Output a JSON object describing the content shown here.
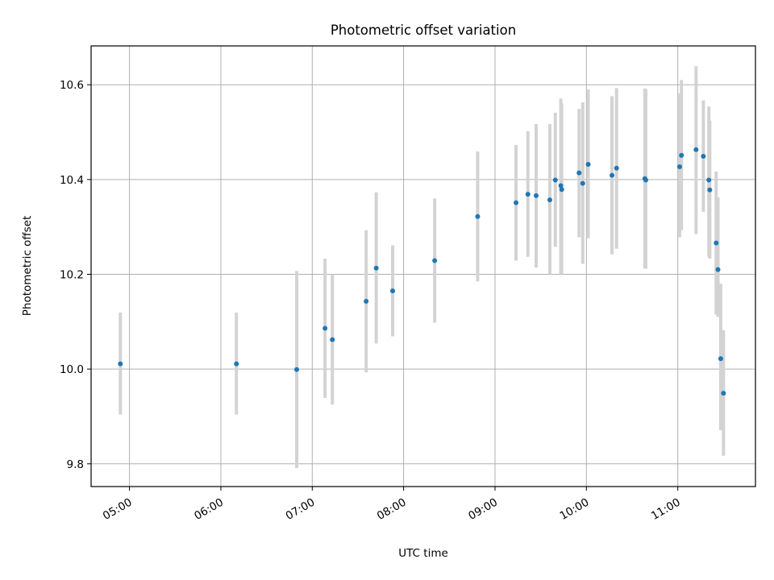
{
  "chart_data": {
    "type": "scatter",
    "title": "Photometric offset variation",
    "xlabel": "UTC time",
    "ylabel": "Photometric offset",
    "x_unit": "hours UTC",
    "xlim": [
      4.58,
      11.85
    ],
    "ylim": [
      9.752,
      10.682
    ],
    "x_ticks": [
      {
        "value": 5,
        "label": "05:00"
      },
      {
        "value": 6,
        "label": "06:00"
      },
      {
        "value": 7,
        "label": "07:00"
      },
      {
        "value": 8,
        "label": "08:00"
      },
      {
        "value": 9,
        "label": "09:00"
      },
      {
        "value": 10,
        "label": "10:00"
      },
      {
        "value": 11,
        "label": "11:00"
      }
    ],
    "y_ticks": [
      {
        "value": 9.8,
        "label": "9.8"
      },
      {
        "value": 10.0,
        "label": "10.0"
      },
      {
        "value": 10.2,
        "label": "10.2"
      },
      {
        "value": 10.4,
        "label": "10.4"
      },
      {
        "value": 10.6,
        "label": "10.6"
      }
    ],
    "grid": true,
    "marker_color": "#1f77b4",
    "errorbar_color": "#d3d3d3",
    "points": [
      {
        "x": 4.9,
        "y": 10.011,
        "lo": 9.904,
        "hi": 10.119
      },
      {
        "x": 6.17,
        "y": 10.011,
        "lo": 9.904,
        "hi": 10.119
      },
      {
        "x": 6.83,
        "y": 9.999,
        "lo": 9.791,
        "hi": 10.207
      },
      {
        "x": 7.14,
        "y": 10.086,
        "lo": 9.939,
        "hi": 10.233
      },
      {
        "x": 7.22,
        "y": 10.062,
        "lo": 9.925,
        "hi": 10.2
      },
      {
        "x": 7.59,
        "y": 10.143,
        "lo": 9.993,
        "hi": 10.293
      },
      {
        "x": 7.7,
        "y": 10.213,
        "lo": 10.054,
        "hi": 10.373
      },
      {
        "x": 7.88,
        "y": 10.165,
        "lo": 10.069,
        "hi": 10.261
      },
      {
        "x": 8.34,
        "y": 10.229,
        "lo": 10.098,
        "hi": 10.36
      },
      {
        "x": 8.81,
        "y": 10.322,
        "lo": 10.185,
        "hi": 10.459
      },
      {
        "x": 9.23,
        "y": 10.351,
        "lo": 10.229,
        "hi": 10.473
      },
      {
        "x": 9.36,
        "y": 10.369,
        "lo": 10.237,
        "hi": 10.502
      },
      {
        "x": 9.45,
        "y": 10.366,
        "lo": 10.214,
        "hi": 10.517
      },
      {
        "x": 9.6,
        "y": 10.357,
        "lo": 10.2,
        "hi": 10.517
      },
      {
        "x": 9.66,
        "y": 10.399,
        "lo": 10.258,
        "hi": 10.541
      },
      {
        "x": 9.72,
        "y": 10.387,
        "lo": 10.2,
        "hi": 10.571
      },
      {
        "x": 9.73,
        "y": 10.379,
        "lo": 10.2,
        "hi": 10.561
      },
      {
        "x": 9.92,
        "y": 10.414,
        "lo": 10.278,
        "hi": 10.549
      },
      {
        "x": 9.96,
        "y": 10.392,
        "lo": 10.222,
        "hi": 10.563
      },
      {
        "x": 10.02,
        "y": 10.432,
        "lo": 10.276,
        "hi": 10.59
      },
      {
        "x": 10.28,
        "y": 10.409,
        "lo": 10.242,
        "hi": 10.576
      },
      {
        "x": 10.33,
        "y": 10.424,
        "lo": 10.254,
        "hi": 10.593
      },
      {
        "x": 10.64,
        "y": 10.402,
        "lo": 10.212,
        "hi": 10.592
      },
      {
        "x": 10.65,
        "y": 10.399,
        "lo": 10.212,
        "hi": 10.59
      },
      {
        "x": 11.02,
        "y": 10.427,
        "lo": 10.278,
        "hi": 10.582
      },
      {
        "x": 11.04,
        "y": 10.451,
        "lo": 10.293,
        "hi": 10.61
      },
      {
        "x": 11.2,
        "y": 10.463,
        "lo": 10.285,
        "hi": 10.639
      },
      {
        "x": 11.28,
        "y": 10.449,
        "lo": 10.332,
        "hi": 10.567
      },
      {
        "x": 11.34,
        "y": 10.399,
        "lo": 10.237,
        "hi": 10.554
      },
      {
        "x": 11.35,
        "y": 10.378,
        "lo": 10.233,
        "hi": 10.524
      },
      {
        "x": 11.42,
        "y": 10.266,
        "lo": 10.115,
        "hi": 10.417
      },
      {
        "x": 11.44,
        "y": 10.21,
        "lo": 10.11,
        "hi": 10.362
      },
      {
        "x": 11.47,
        "y": 10.022,
        "lo": 9.871,
        "hi": 10.18
      },
      {
        "x": 11.5,
        "y": 9.949,
        "lo": 9.817,
        "hi": 10.082
      }
    ]
  }
}
